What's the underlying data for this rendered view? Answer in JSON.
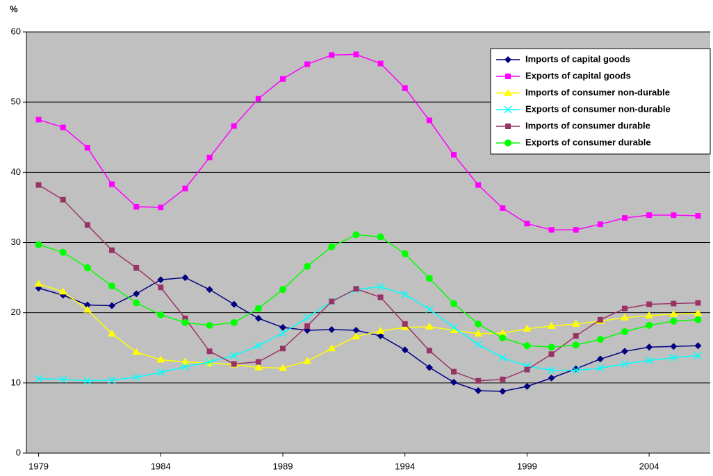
{
  "chart_data": {
    "type": "line",
    "ylabel": "%",
    "x": [
      1979,
      1980,
      1981,
      1982,
      1983,
      1984,
      1985,
      1986,
      1987,
      1988,
      1989,
      1990,
      1991,
      1992,
      1993,
      1994,
      1995,
      1996,
      1997,
      1998,
      1999,
      2000,
      2001,
      2002,
      2003,
      2004,
      2005,
      2006
    ],
    "xlim": [
      1978.5,
      2006.5
    ],
    "xticks": [
      1979,
      1984,
      1989,
      1994,
      1999,
      2004
    ],
    "ylim": [
      0,
      60
    ],
    "yticks": [
      0,
      10,
      20,
      30,
      40,
      50,
      60
    ],
    "grid": true,
    "legend": "upper right",
    "series": [
      {
        "name": "Imports of capital goods",
        "color": "#000080",
        "marker": "diamond",
        "values": [
          23.5,
          22.5,
          21.1,
          21.0,
          22.7,
          24.7,
          25.0,
          23.3,
          21.2,
          19.2,
          17.9,
          17.5,
          17.6,
          17.5,
          16.7,
          14.7,
          12.2,
          10.1,
          8.9,
          8.8,
          9.5,
          10.7,
          12.0,
          13.4,
          14.5,
          15.1,
          15.2,
          15.3
        ]
      },
      {
        "name": "Exports of capital goods",
        "color": "#ff00ff",
        "marker": "square",
        "values": [
          47.5,
          46.4,
          43.5,
          38.3,
          35.1,
          35.0,
          37.7,
          42.1,
          46.6,
          50.5,
          53.3,
          55.4,
          56.7,
          56.8,
          55.5,
          52.0,
          47.4,
          42.5,
          38.2,
          34.9,
          32.7,
          31.8,
          31.8,
          32.6,
          33.5,
          33.9,
          33.9,
          33.8
        ]
      },
      {
        "name": "Imports of consumer non-durable",
        "color": "#ffff00",
        "marker": "triangle",
        "values": [
          24.1,
          23.0,
          20.4,
          17.0,
          14.4,
          13.3,
          13.0,
          12.8,
          12.6,
          12.2,
          12.1,
          13.1,
          14.9,
          16.6,
          17.4,
          17.9,
          18.0,
          17.5,
          17.0,
          17.1,
          17.7,
          18.1,
          18.4,
          18.8,
          19.3,
          19.6,
          19.8,
          19.9
        ]
      },
      {
        "name": "Exports of consumer non-durable",
        "color": "#00ffff",
        "marker": "x",
        "values": [
          10.6,
          10.5,
          10.3,
          10.4,
          10.8,
          11.5,
          12.3,
          13.0,
          13.9,
          15.3,
          17.1,
          19.3,
          21.6,
          23.3,
          23.7,
          22.6,
          20.5,
          17.9,
          15.5,
          13.6,
          12.4,
          11.8,
          11.8,
          12.1,
          12.7,
          13.2,
          13.6,
          13.9
        ]
      },
      {
        "name": "Imports of consumer durable",
        "color": "#993366",
        "marker": "square",
        "values": [
          38.2,
          36.1,
          32.5,
          28.9,
          26.4,
          23.6,
          19.2,
          14.5,
          12.7,
          13.0,
          14.9,
          18.1,
          21.6,
          23.4,
          22.2,
          18.4,
          14.6,
          11.6,
          10.3,
          10.5,
          11.9,
          14.1,
          16.7,
          19.0,
          20.6,
          21.2,
          21.3,
          21.4
        ]
      },
      {
        "name": "Exports of consumer durable",
        "color": "#00ff00",
        "marker": "circle",
        "values": [
          29.7,
          28.6,
          26.4,
          23.8,
          21.4,
          19.7,
          18.6,
          18.2,
          18.6,
          20.6,
          23.3,
          26.6,
          29.4,
          31.1,
          30.8,
          28.4,
          24.9,
          21.3,
          18.4,
          16.4,
          15.3,
          15.1,
          15.4,
          16.2,
          17.3,
          18.2,
          18.8,
          19.0
        ]
      }
    ]
  }
}
